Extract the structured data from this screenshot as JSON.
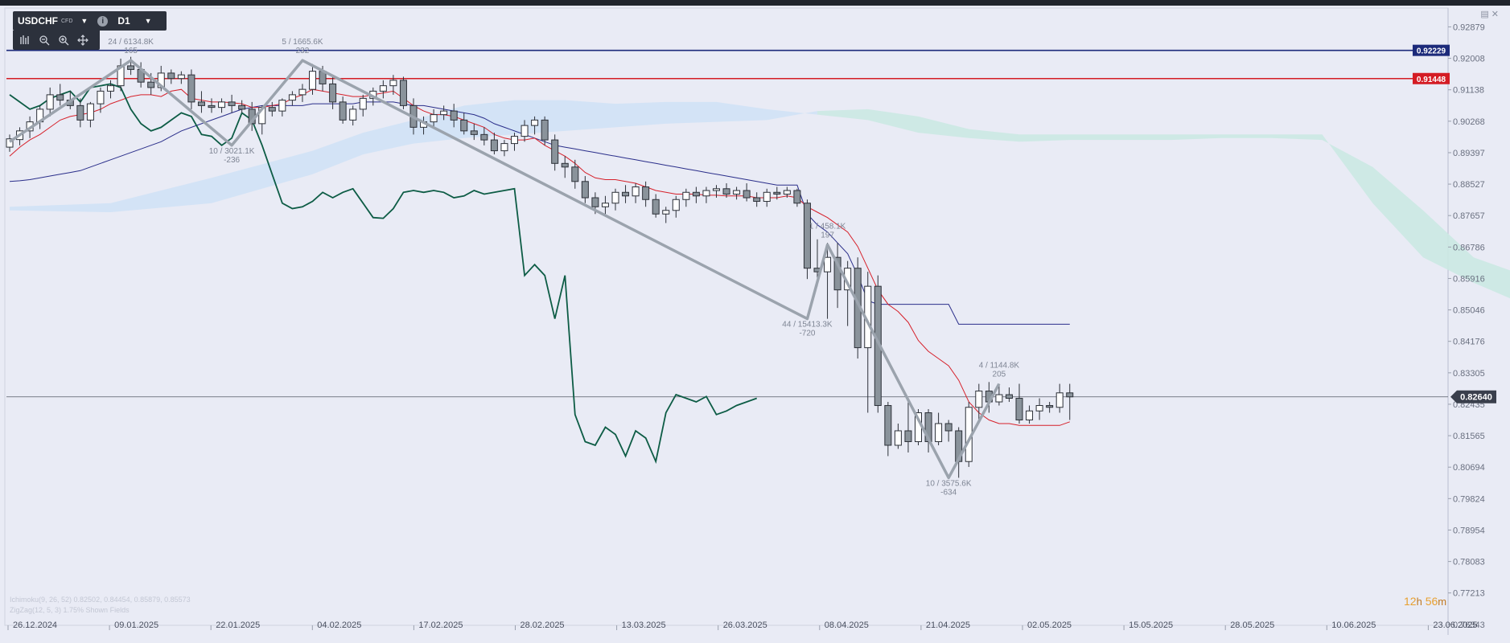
{
  "toolbar": {
    "symbol": "USDCHF",
    "instrument_type": "CFD",
    "timeframe": "D1",
    "info_glyph": "i"
  },
  "countdown": {
    "hours": "12",
    "h_unit": "h",
    "minutes": "56",
    "m_unit": "m"
  },
  "legend_lines": [
    "Ichimoku(9, 26, 52) 0.82502, 0.84454, 0.85879, 0.85573",
    "ZigZag(12, 5, 3) 1.75% Shown Fields"
  ],
  "colors": {
    "background": "#e9ebf5",
    "resistance": "#d41c24",
    "support_top": "#1c2a7a",
    "tenkan": "#d6202a",
    "kijun": "#2a2e8a",
    "chikou": "#0d5c45",
    "cloud_bull": "#cfe2f6",
    "cloud_bear": "#cbe9e3",
    "zigzag": "#9ba3ad",
    "candle_up": "#ffffff",
    "candle_down": "#8a939b"
  },
  "chart_data": {
    "type": "candlestick",
    "symbol": "USDCHF",
    "timeframe": "D1",
    "ylim": [
      0.7605,
      0.934
    ],
    "y_ticks": [
      "0.92879",
      "0.92008",
      "0.91138",
      "0.90268",
      "0.89397",
      "0.88527",
      "0.87657",
      "0.86786",
      "0.85916",
      "0.85046",
      "0.84176",
      "0.83305",
      "0.82435",
      "0.81565",
      "0.80694",
      "0.79824",
      "0.78954",
      "0.78083",
      "0.77213",
      "0.76343"
    ],
    "x_ticks": [
      "26.12.2024",
      "09.01.2025",
      "22.01.2025",
      "04.02.2025",
      "17.02.2025",
      "28.02.2025",
      "13.03.2025",
      "26.03.2025",
      "08.04.2025",
      "21.04.2025",
      "02.05.2025",
      "15.05.2025",
      "28.05.2025",
      "10.06.2025",
      "23.06.2025"
    ],
    "horizontal_lines": [
      {
        "value": "0.92229",
        "color": "#1c2a7a"
      },
      {
        "value": "0.91448",
        "color": "#d41c24"
      },
      {
        "value": "0.82640",
        "color": "#555a66"
      }
    ],
    "current_price": "0.82640",
    "candles": [
      {
        "o": 0.8955,
        "h": 0.899,
        "l": 0.8942,
        "c": 0.8978
      },
      {
        "o": 0.8976,
        "h": 0.901,
        "l": 0.896,
        "c": 0.9
      },
      {
        "o": 0.9,
        "h": 0.904,
        "l": 0.898,
        "c": 0.9025
      },
      {
        "o": 0.9025,
        "h": 0.907,
        "l": 0.9005,
        "c": 0.906
      },
      {
        "o": 0.906,
        "h": 0.912,
        "l": 0.904,
        "c": 0.91
      },
      {
        "o": 0.91,
        "h": 0.913,
        "l": 0.907,
        "c": 0.9085
      },
      {
        "o": 0.9085,
        "h": 0.911,
        "l": 0.906,
        "c": 0.907
      },
      {
        "o": 0.907,
        "h": 0.909,
        "l": 0.901,
        "c": 0.903
      },
      {
        "o": 0.903,
        "h": 0.908,
        "l": 0.901,
        "c": 0.9075
      },
      {
        "o": 0.9075,
        "h": 0.912,
        "l": 0.905,
        "c": 0.911
      },
      {
        "o": 0.911,
        "h": 0.914,
        "l": 0.909,
        "c": 0.9125
      },
      {
        "o": 0.9125,
        "h": 0.92,
        "l": 0.911,
        "c": 0.918
      },
      {
        "o": 0.918,
        "h": 0.9205,
        "l": 0.9155,
        "c": 0.917
      },
      {
        "o": 0.917,
        "h": 0.919,
        "l": 0.912,
        "c": 0.9135
      },
      {
        "o": 0.9135,
        "h": 0.916,
        "l": 0.91,
        "c": 0.912
      },
      {
        "o": 0.912,
        "h": 0.918,
        "l": 0.911,
        "c": 0.916
      },
      {
        "o": 0.916,
        "h": 0.917,
        "l": 0.913,
        "c": 0.9145
      },
      {
        "o": 0.9145,
        "h": 0.9165,
        "l": 0.913,
        "c": 0.9155
      },
      {
        "o": 0.9155,
        "h": 0.917,
        "l": 0.906,
        "c": 0.908
      },
      {
        "o": 0.908,
        "h": 0.911,
        "l": 0.905,
        "c": 0.907
      },
      {
        "o": 0.907,
        "h": 0.909,
        "l": 0.905,
        "c": 0.9065
      },
      {
        "o": 0.9065,
        "h": 0.909,
        "l": 0.905,
        "c": 0.908
      },
      {
        "o": 0.908,
        "h": 0.91,
        "l": 0.905,
        "c": 0.907
      },
      {
        "o": 0.907,
        "h": 0.9085,
        "l": 0.905,
        "c": 0.906
      },
      {
        "o": 0.906,
        "h": 0.908,
        "l": 0.9,
        "c": 0.902
      },
      {
        "o": 0.902,
        "h": 0.907,
        "l": 0.899,
        "c": 0.9065
      },
      {
        "o": 0.9065,
        "h": 0.908,
        "l": 0.904,
        "c": 0.9055
      },
      {
        "o": 0.9055,
        "h": 0.909,
        "l": 0.904,
        "c": 0.9085
      },
      {
        "o": 0.9085,
        "h": 0.911,
        "l": 0.907,
        "c": 0.91
      },
      {
        "o": 0.91,
        "h": 0.913,
        "l": 0.908,
        "c": 0.9115
      },
      {
        "o": 0.9115,
        "h": 0.9185,
        "l": 0.91,
        "c": 0.9165
      },
      {
        "o": 0.9165,
        "h": 0.918,
        "l": 0.911,
        "c": 0.913
      },
      {
        "o": 0.913,
        "h": 0.915,
        "l": 0.906,
        "c": 0.908
      },
      {
        "o": 0.908,
        "h": 0.9095,
        "l": 0.902,
        "c": 0.903
      },
      {
        "o": 0.903,
        "h": 0.907,
        "l": 0.9015,
        "c": 0.906
      },
      {
        "o": 0.906,
        "h": 0.91,
        "l": 0.904,
        "c": 0.909
      },
      {
        "o": 0.909,
        "h": 0.912,
        "l": 0.907,
        "c": 0.911
      },
      {
        "o": 0.911,
        "h": 0.914,
        "l": 0.909,
        "c": 0.9125
      },
      {
        "o": 0.9125,
        "h": 0.9155,
        "l": 0.91,
        "c": 0.914
      },
      {
        "o": 0.914,
        "h": 0.915,
        "l": 0.906,
        "c": 0.907
      },
      {
        "o": 0.907,
        "h": 0.909,
        "l": 0.899,
        "c": 0.901
      },
      {
        "o": 0.901,
        "h": 0.904,
        "l": 0.899,
        "c": 0.9025
      },
      {
        "o": 0.9025,
        "h": 0.906,
        "l": 0.901,
        "c": 0.9045
      },
      {
        "o": 0.9045,
        "h": 0.907,
        "l": 0.903,
        "c": 0.9055
      },
      {
        "o": 0.9055,
        "h": 0.9075,
        "l": 0.901,
        "c": 0.903
      },
      {
        "o": 0.903,
        "h": 0.905,
        "l": 0.899,
        "c": 0.9
      },
      {
        "o": 0.9,
        "h": 0.902,
        "l": 0.8975,
        "c": 0.899
      },
      {
        "o": 0.899,
        "h": 0.901,
        "l": 0.896,
        "c": 0.8975
      },
      {
        "o": 0.8975,
        "h": 0.8995,
        "l": 0.8935,
        "c": 0.8945
      },
      {
        "o": 0.8945,
        "h": 0.8975,
        "l": 0.893,
        "c": 0.8965
      },
      {
        "o": 0.8965,
        "h": 0.8995,
        "l": 0.8945,
        "c": 0.8985
      },
      {
        "o": 0.8985,
        "h": 0.903,
        "l": 0.897,
        "c": 0.9015
      },
      {
        "o": 0.9015,
        "h": 0.904,
        "l": 0.899,
        "c": 0.903
      },
      {
        "o": 0.903,
        "h": 0.904,
        "l": 0.896,
        "c": 0.8975
      },
      {
        "o": 0.8975,
        "h": 0.899,
        "l": 0.889,
        "c": 0.891
      },
      {
        "o": 0.891,
        "h": 0.893,
        "l": 0.887,
        "c": 0.89
      },
      {
        "o": 0.89,
        "h": 0.892,
        "l": 0.884,
        "c": 0.886
      },
      {
        "o": 0.886,
        "h": 0.8875,
        "l": 0.88,
        "c": 0.8815
      },
      {
        "o": 0.8815,
        "h": 0.883,
        "l": 0.877,
        "c": 0.879
      },
      {
        "o": 0.879,
        "h": 0.882,
        "l": 0.877,
        "c": 0.88
      },
      {
        "o": 0.88,
        "h": 0.884,
        "l": 0.878,
        "c": 0.883
      },
      {
        "o": 0.883,
        "h": 0.885,
        "l": 0.88,
        "c": 0.882
      },
      {
        "o": 0.882,
        "h": 0.8855,
        "l": 0.88,
        "c": 0.8845
      },
      {
        "o": 0.8845,
        "h": 0.886,
        "l": 0.879,
        "c": 0.881
      },
      {
        "o": 0.881,
        "h": 0.8825,
        "l": 0.876,
        "c": 0.877
      },
      {
        "o": 0.877,
        "h": 0.879,
        "l": 0.8745,
        "c": 0.878
      },
      {
        "o": 0.878,
        "h": 0.882,
        "l": 0.876,
        "c": 0.881
      },
      {
        "o": 0.881,
        "h": 0.884,
        "l": 0.879,
        "c": 0.883
      },
      {
        "o": 0.883,
        "h": 0.8845,
        "l": 0.88,
        "c": 0.882
      },
      {
        "o": 0.882,
        "h": 0.8845,
        "l": 0.88,
        "c": 0.8835
      },
      {
        "o": 0.8835,
        "h": 0.885,
        "l": 0.8815,
        "c": 0.884
      },
      {
        "o": 0.884,
        "h": 0.8855,
        "l": 0.8815,
        "c": 0.8825
      },
      {
        "o": 0.8825,
        "h": 0.8845,
        "l": 0.881,
        "c": 0.8835
      },
      {
        "o": 0.8835,
        "h": 0.8855,
        "l": 0.8805,
        "c": 0.8815
      },
      {
        "o": 0.8815,
        "h": 0.883,
        "l": 0.879,
        "c": 0.8805
      },
      {
        "o": 0.8805,
        "h": 0.884,
        "l": 0.879,
        "c": 0.883
      },
      {
        "o": 0.883,
        "h": 0.8845,
        "l": 0.881,
        "c": 0.8825
      },
      {
        "o": 0.8825,
        "h": 0.8845,
        "l": 0.8815,
        "c": 0.8835
      },
      {
        "o": 0.8835,
        "h": 0.884,
        "l": 0.879,
        "c": 0.88
      },
      {
        "o": 0.88,
        "h": 0.881,
        "l": 0.859,
        "c": 0.862
      },
      {
        "o": 0.862,
        "h": 0.87,
        "l": 0.857,
        "c": 0.861
      },
      {
        "o": 0.861,
        "h": 0.869,
        "l": 0.848,
        "c": 0.865
      },
      {
        "o": 0.865,
        "h": 0.869,
        "l": 0.851,
        "c": 0.856
      },
      {
        "o": 0.856,
        "h": 0.864,
        "l": 0.846,
        "c": 0.862
      },
      {
        "o": 0.862,
        "h": 0.865,
        "l": 0.837,
        "c": 0.84
      },
      {
        "o": 0.84,
        "h": 0.861,
        "l": 0.822,
        "c": 0.857
      },
      {
        "o": 0.857,
        "h": 0.86,
        "l": 0.822,
        "c": 0.824
      },
      {
        "o": 0.824,
        "h": 0.825,
        "l": 0.81,
        "c": 0.813
      },
      {
        "o": 0.813,
        "h": 0.819,
        "l": 0.812,
        "c": 0.817
      },
      {
        "o": 0.817,
        "h": 0.825,
        "l": 0.811,
        "c": 0.814
      },
      {
        "o": 0.814,
        "h": 0.823,
        "l": 0.813,
        "c": 0.822
      },
      {
        "o": 0.822,
        "h": 0.823,
        "l": 0.811,
        "c": 0.814
      },
      {
        "o": 0.814,
        "h": 0.822,
        "l": 0.813,
        "c": 0.819
      },
      {
        "o": 0.819,
        "h": 0.82,
        "l": 0.814,
        "c": 0.817
      },
      {
        "o": 0.817,
        "h": 0.818,
        "l": 0.804,
        "c": 0.8085
      },
      {
        "o": 0.8085,
        "h": 0.825,
        "l": 0.807,
        "c": 0.8235
      },
      {
        "o": 0.8235,
        "h": 0.83,
        "l": 0.819,
        "c": 0.828
      },
      {
        "o": 0.828,
        "h": 0.8305,
        "l": 0.822,
        "c": 0.825
      },
      {
        "o": 0.825,
        "h": 0.83,
        "l": 0.824,
        "c": 0.827
      },
      {
        "o": 0.827,
        "h": 0.829,
        "l": 0.825,
        "c": 0.826
      },
      {
        "o": 0.826,
        "h": 0.83,
        "l": 0.819,
        "c": 0.82
      },
      {
        "o": 0.82,
        "h": 0.824,
        "l": 0.819,
        "c": 0.8225
      },
      {
        "o": 0.8225,
        "h": 0.826,
        "l": 0.82,
        "c": 0.824
      },
      {
        "o": 0.824,
        "h": 0.825,
        "l": 0.822,
        "c": 0.8235
      },
      {
        "o": 0.8235,
        "h": 0.83,
        "l": 0.822,
        "c": 0.8275
      },
      {
        "o": 0.8275,
        "h": 0.83,
        "l": 0.82,
        "c": 0.8264
      }
    ],
    "tenkan_sen": [
      0.893,
      0.8955,
      0.8975,
      0.899,
      0.901,
      0.903,
      0.904,
      0.9045,
      0.905,
      0.906,
      0.9075,
      0.9085,
      0.9095,
      0.91,
      0.91,
      0.9095,
      0.911,
      0.9115,
      0.909,
      0.9085,
      0.908,
      0.908,
      0.9078,
      0.9075,
      0.9065,
      0.9065,
      0.907,
      0.9075,
      0.909,
      0.91,
      0.9115,
      0.911,
      0.9105,
      0.91,
      0.9095,
      0.9095,
      0.91,
      0.9105,
      0.911,
      0.909,
      0.907,
      0.9055,
      0.9045,
      0.9045,
      0.904,
      0.903,
      0.902,
      0.901,
      0.899,
      0.898,
      0.8975,
      0.8975,
      0.898,
      0.896,
      0.8945,
      0.893,
      0.891,
      0.8885,
      0.887,
      0.8865,
      0.8865,
      0.886,
      0.8855,
      0.8845,
      0.8835,
      0.883,
      0.8825,
      0.8825,
      0.8825,
      0.8822,
      0.8822,
      0.882,
      0.882,
      0.882,
      0.8815,
      0.8815,
      0.8815,
      0.882,
      0.8815,
      0.879,
      0.8775,
      0.876,
      0.874,
      0.872,
      0.868,
      0.862,
      0.856,
      0.852,
      0.85,
      0.847,
      0.842,
      0.839,
      0.837,
      0.835,
      0.831,
      0.825,
      0.822,
      0.82,
      0.819,
      0.819,
      0.8185,
      0.8185,
      0.8185,
      0.8185,
      0.8185,
      0.8195
    ],
    "kijun_sen": [
      0.886,
      0.8862,
      0.8865,
      0.887,
      0.8875,
      0.888,
      0.8885,
      0.889,
      0.89,
      0.891,
      0.892,
      0.893,
      0.894,
      0.895,
      0.896,
      0.897,
      0.8985,
      0.9,
      0.901,
      0.902,
      0.903,
      0.904,
      0.905,
      0.906,
      0.9065,
      0.907,
      0.907,
      0.907,
      0.907,
      0.907,
      0.9075,
      0.9075,
      0.9075,
      0.9075,
      0.9075,
      0.908,
      0.908,
      0.908,
      0.908,
      0.9075,
      0.907,
      0.907,
      0.9065,
      0.906,
      0.9055,
      0.905,
      0.9045,
      0.9035,
      0.902,
      0.901,
      0.9,
      0.899,
      0.898,
      0.897,
      0.896,
      0.8955,
      0.895,
      0.8945,
      0.894,
      0.8935,
      0.893,
      0.8925,
      0.892,
      0.8915,
      0.891,
      0.8905,
      0.89,
      0.8895,
      0.889,
      0.8885,
      0.888,
      0.8875,
      0.887,
      0.8865,
      0.886,
      0.8855,
      0.885,
      0.885,
      0.885,
      0.877,
      0.874,
      0.872,
      0.869,
      0.866,
      0.86,
      0.853,
      0.852,
      0.852,
      0.852,
      0.852,
      0.852,
      0.852,
      0.852,
      0.852,
      0.8465,
      0.8465,
      0.8465,
      0.8465,
      0.8465,
      0.8465,
      0.8465,
      0.8465,
      0.8465,
      0.8465,
      0.8465,
      0.8465
    ],
    "chikou_span": [
      0.91,
      0.908,
      0.906,
      0.907,
      0.909,
      0.91,
      0.911,
      0.908,
      0.912,
      0.9125,
      0.913,
      0.912,
      0.906,
      0.902,
      0.9,
      0.901,
      0.903,
      0.905,
      0.904,
      0.899,
      0.8985,
      0.896,
      0.898,
      0.905,
      0.903,
      0.896,
      0.888,
      0.88,
      0.8785,
      0.879,
      0.8805,
      0.883,
      0.8815,
      0.883,
      0.884,
      0.88,
      0.876,
      0.8758,
      0.8785,
      0.883,
      0.8835,
      0.883,
      0.8835,
      0.883,
      0.8815,
      0.882,
      0.8835,
      0.8825,
      0.883,
      0.8835,
      0.884,
      0.86,
      0.863,
      0.86,
      0.848,
      0.86,
      0.8215,
      0.814,
      0.813,
      0.818,
      0.816,
      0.81,
      0.817,
      0.815,
      0.8085,
      0.822,
      0.827,
      0.826,
      0.825,
      0.8265,
      0.8215,
      0.8225,
      0.824,
      0.825,
      0.826
    ],
    "cloud": [
      {
        "i": 0,
        "a": 0.879,
        "b": 0.878
      },
      {
        "i": 10,
        "a": 0.88,
        "b": 0.8775
      },
      {
        "i": 20,
        "a": 0.887,
        "b": 0.88
      },
      {
        "i": 30,
        "a": 0.8945,
        "b": 0.888
      },
      {
        "i": 35,
        "a": 0.8995,
        "b": 0.8935
      },
      {
        "i": 40,
        "a": 0.903,
        "b": 0.8965
      },
      {
        "i": 45,
        "a": 0.907,
        "b": 0.898
      },
      {
        "i": 50,
        "a": 0.9085,
        "b": 0.899
      },
      {
        "i": 55,
        "a": 0.9085,
        "b": 0.9
      },
      {
        "i": 60,
        "a": 0.9075,
        "b": 0.901
      },
      {
        "i": 65,
        "a": 0.908,
        "b": 0.902
      },
      {
        "i": 70,
        "a": 0.908,
        "b": 0.9025
      },
      {
        "i": 75,
        "a": 0.906,
        "b": 0.903
      },
      {
        "i": 80,
        "a": 0.9045,
        "b": 0.9055
      },
      {
        "i": 85,
        "a": 0.903,
        "b": 0.906
      },
      {
        "i": 90,
        "a": 0.8995,
        "b": 0.904
      },
      {
        "i": 95,
        "a": 0.898,
        "b": 0.9005
      },
      {
        "i": 100,
        "a": 0.897,
        "b": 0.899
      },
      {
        "i": 105,
        "a": 0.8975,
        "b": 0.899
      },
      {
        "i": 110,
        "a": 0.8975,
        "b": 0.899
      },
      {
        "i": 115,
        "a": 0.8975,
        "b": 0.899
      },
      {
        "i": 120,
        "a": 0.898,
        "b": 0.899
      },
      {
        "i": 125,
        "a": 0.898,
        "b": 0.899
      },
      {
        "i": 130,
        "a": 0.8975,
        "b": 0.899
      },
      {
        "i": 135,
        "a": 0.89,
        "b": 0.88
      },
      {
        "i": 140,
        "a": 0.878,
        "b": 0.865
      },
      {
        "i": 145,
        "a": 0.865,
        "b": 0.858
      },
      {
        "i": 150,
        "a": 0.86,
        "b": 0.852
      },
      {
        "i": 155,
        "a": 0.857,
        "b": 0.842
      },
      {
        "i": 158,
        "a": 0.856,
        "b": 0.838
      },
      {
        "i": 160,
        "a": 0.856,
        "b": 0.833
      },
      {
        "i": 165,
        "a": 0.856,
        "b": 0.834
      },
      {
        "i": 168,
        "a": 0.856,
        "b": 0.834
      }
    ],
    "cloud_color_switch_index": 80,
    "zigzag": [
      {
        "i": 0,
        "v": 0.897
      },
      {
        "i": 12,
        "v": 0.9195,
        "label1": "24 / 6134.8K",
        "label2": "165"
      },
      {
        "i": 22,
        "v": 0.896,
        "label1": "10 / 3021.1K",
        "label2": "-236"
      },
      {
        "i": 29,
        "v": 0.9195,
        "label1": "5 / 1665.6K",
        "label2": "232"
      },
      {
        "i": 79,
        "v": 0.848,
        "label1": "44 / 15413.3K",
        "label2": "-720"
      },
      {
        "i": 81,
        "v": 0.8685,
        "label1": "1 / 458.1K",
        "label2": "197"
      },
      {
        "i": 93,
        "v": 0.804,
        "label1": "10 / 3575.6K",
        "label2": "-634"
      },
      {
        "i": 98,
        "v": 0.83,
        "label1": "4 / 1144.8K",
        "label2": "205"
      }
    ]
  }
}
